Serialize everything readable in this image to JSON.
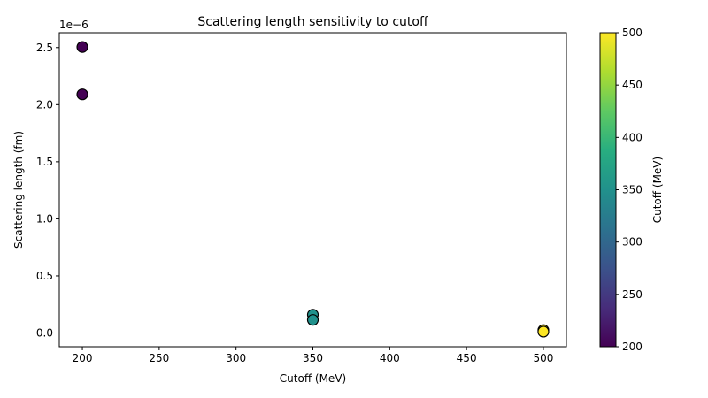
{
  "chart_data": {
    "type": "scatter",
    "title": "Scattering length sensitivity to cutoff",
    "xlabel": "Cutoff (MeV)",
    "ylabel": "Scattering length (fm)",
    "y_offset_label": "1e−6",
    "xlim": [
      185,
      515
    ],
    "ylim": [
      -1.2e-07,
      2.63e-06
    ],
    "x_ticks": [
      200,
      250,
      300,
      350,
      400,
      450,
      500
    ],
    "x_tick_labels": [
      "200",
      "250",
      "300",
      "350",
      "400",
      "450",
      "500"
    ],
    "y_ticks": [
      0.0,
      5e-07,
      1e-06,
      1.5e-06,
      2e-06,
      2.5e-06
    ],
    "y_tick_labels": [
      "0.0",
      "0.5",
      "1.0",
      "1.5",
      "2.0",
      "2.5"
    ],
    "grid": false,
    "points": [
      {
        "x": 200,
        "y": 2.505e-06,
        "c": 200
      },
      {
        "x": 200,
        "y": 2.09e-06,
        "c": 200
      },
      {
        "x": 350,
        "y": 1.6e-07,
        "c": 350
      },
      {
        "x": 350,
        "y": 1.15e-07,
        "c": 350
      },
      {
        "x": 500,
        "y": 2.5e-08,
        "c": 500
      },
      {
        "x": 500,
        "y": 1.2e-08,
        "c": 500
      }
    ],
    "colorbar": {
      "label": "Cutoff (MeV)",
      "colormap": "viridis",
      "range": [
        200,
        500
      ],
      "ticks": [
        200,
        250,
        300,
        350,
        400,
        450,
        500
      ],
      "tick_labels": [
        "200",
        "250",
        "300",
        "350",
        "400",
        "450",
        "500"
      ]
    },
    "marker_edge_color": "#000000"
  }
}
